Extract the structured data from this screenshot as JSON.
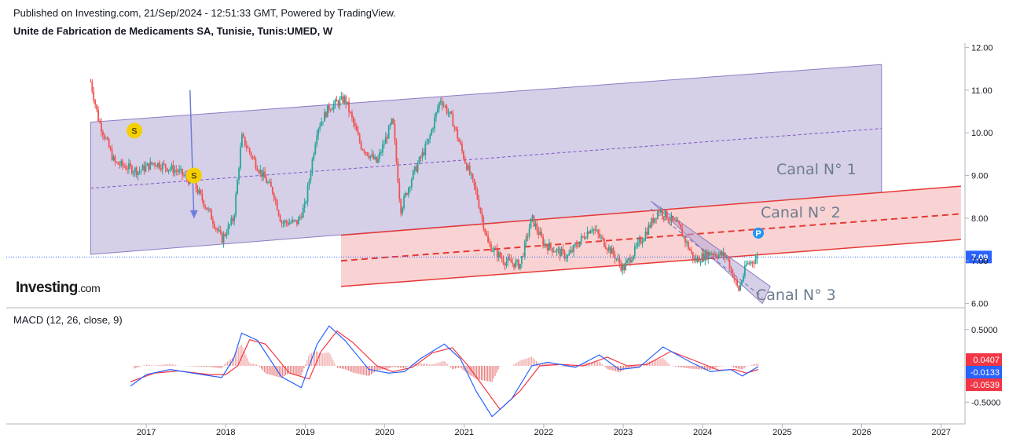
{
  "header": {
    "published": "Published on Investing.com, 21/Sep/2024 - 12:51:33 GMT, Powered by TradingView.",
    "symbol": "Unite de Fabrication de Medicaments SA, Tunisie, Tunis:UMED, W"
  },
  "brand": {
    "name": "Investing",
    "suffix": ".com"
  },
  "colors": {
    "up": "#26a69a",
    "down": "#ef5350",
    "channel1": "#b4a7d6",
    "channel2": "#f4a8a8",
    "macd": "#2962ff",
    "signal": "#f23645",
    "last_price": "#2962ff"
  },
  "chart_data": [
    {
      "type": "candlestick",
      "title": "Unite de Fabrication de Medicaments SA, Tunisie, Tunis:UMED, W",
      "x_axis": {
        "ticks": [
          "2017",
          "2018",
          "2019",
          "2020",
          "2021",
          "2022",
          "2023",
          "2024",
          "2025",
          "2026",
          "2027"
        ]
      },
      "y_axis": {
        "ticks": [
          "6.00",
          "7.00",
          "8.00",
          "9.00",
          "10.00",
          "11.00",
          "12.00"
        ],
        "range": [
          5.9,
          12.1
        ]
      },
      "last_price_label": "7.09",
      "last_price": 7.09,
      "approx_close_path": [
        {
          "x": 2016.3,
          "y": 11.2
        },
        {
          "x": 2016.4,
          "y": 10.3
        },
        {
          "x": 2016.5,
          "y": 9.8
        },
        {
          "x": 2016.6,
          "y": 9.3
        },
        {
          "x": 2016.9,
          "y": 9.1
        },
        {
          "x": 2017.1,
          "y": 9.3
        },
        {
          "x": 2017.4,
          "y": 9.1
        },
        {
          "x": 2017.6,
          "y": 8.8
        },
        {
          "x": 2017.8,
          "y": 8.1
        },
        {
          "x": 2017.95,
          "y": 7.5
        },
        {
          "x": 2018.1,
          "y": 8.0
        },
        {
          "x": 2018.2,
          "y": 9.9
        },
        {
          "x": 2018.4,
          "y": 9.2
        },
        {
          "x": 2018.6,
          "y": 8.6
        },
        {
          "x": 2018.7,
          "y": 7.9
        },
        {
          "x": 2018.9,
          "y": 7.9
        },
        {
          "x": 2019.0,
          "y": 8.3
        },
        {
          "x": 2019.15,
          "y": 10.1
        },
        {
          "x": 2019.3,
          "y": 10.6
        },
        {
          "x": 2019.5,
          "y": 10.8
        },
        {
          "x": 2019.7,
          "y": 9.7
        },
        {
          "x": 2019.9,
          "y": 9.3
        },
        {
          "x": 2020.1,
          "y": 10.3
        },
        {
          "x": 2020.2,
          "y": 8.2
        },
        {
          "x": 2020.35,
          "y": 9.0
        },
        {
          "x": 2020.55,
          "y": 9.8
        },
        {
          "x": 2020.7,
          "y": 10.8
        },
        {
          "x": 2020.85,
          "y": 10.3
        },
        {
          "x": 2021.0,
          "y": 9.4
        },
        {
          "x": 2021.15,
          "y": 8.6
        },
        {
          "x": 2021.3,
          "y": 7.4
        },
        {
          "x": 2021.5,
          "y": 7.0
        },
        {
          "x": 2021.7,
          "y": 6.9
        },
        {
          "x": 2021.85,
          "y": 8.0
        },
        {
          "x": 2022.0,
          "y": 7.4
        },
        {
          "x": 2022.3,
          "y": 7.1
        },
        {
          "x": 2022.6,
          "y": 7.8
        },
        {
          "x": 2022.9,
          "y": 7.1
        },
        {
          "x": 2023.0,
          "y": 6.8
        },
        {
          "x": 2023.2,
          "y": 7.4
        },
        {
          "x": 2023.45,
          "y": 8.2
        },
        {
          "x": 2023.7,
          "y": 7.8
        },
        {
          "x": 2023.9,
          "y": 7.0
        },
        {
          "x": 2024.1,
          "y": 7.2
        },
        {
          "x": 2024.3,
          "y": 7.1
        },
        {
          "x": 2024.45,
          "y": 6.3
        },
        {
          "x": 2024.55,
          "y": 6.9
        },
        {
          "x": 2024.7,
          "y": 7.09
        }
      ],
      "annotations": {
        "channels": [
          {
            "name": "Canal N° 1",
            "lower": [
              {
                "x": 2016.3,
                "y": 7.15
              },
              {
                "x": 2026.25,
                "y": 8.6
              }
            ],
            "upper": [
              {
                "x": 2016.3,
                "y": 10.25
              },
              {
                "x": 2026.25,
                "y": 11.6
              }
            ],
            "middle": [
              {
                "x": 2016.3,
                "y": 8.7
              },
              {
                "x": 2026.25,
                "y": 10.1
              }
            ]
          },
          {
            "name": "Canal N° 2",
            "lower": [
              {
                "x": 2019.45,
                "y": 6.4
              },
              {
                "x": 2027.25,
                "y": 7.5
              }
            ],
            "upper": [
              {
                "x": 2019.45,
                "y": 7.6
              },
              {
                "x": 2027.25,
                "y": 8.75
              }
            ],
            "middle": [
              {
                "x": 2019.45,
                "y": 7.0
              },
              {
                "x": 2027.25,
                "y": 8.1
              }
            ]
          },
          {
            "name": "Canal N° 3",
            "upper": [
              {
                "x": 2023.35,
                "y": 8.4
              },
              {
                "x": 2024.85,
                "y": 6.4
              }
            ],
            "lower": [
              {
                "x": 2023.8,
                "y": 7.6
              },
              {
                "x": 2024.75,
                "y": 6.0
              }
            ]
          }
        ],
        "badges": [
          {
            "label": "S",
            "x": 2016.85,
            "y": 10.05
          },
          {
            "label": "S",
            "x": 2017.6,
            "y": 9.0
          },
          {
            "label": "P",
            "x": 2024.7,
            "y": 7.65
          }
        ],
        "arrow": {
          "from": {
            "x": 2017.55,
            "y": 11.0
          },
          "to": {
            "x": 2017.6,
            "y": 8.0
          }
        }
      }
    },
    {
      "type": "line",
      "title": "MACD (12, 26, close, 9)",
      "y_axis": {
        "ticks": [
          "0.5000",
          "-0.5000"
        ],
        "range": [
          -0.8,
          0.8
        ]
      },
      "value_labels": [
        "0.0407",
        "-0.0133",
        "-0.0539"
      ],
      "series": [
        {
          "name": "MACD",
          "points": [
            {
              "x": 2016.8,
              "y": -0.28
            },
            {
              "x": 2017.0,
              "y": -0.12
            },
            {
              "x": 2017.3,
              "y": -0.05
            },
            {
              "x": 2017.7,
              "y": -0.12
            },
            {
              "x": 2017.95,
              "y": -0.16
            },
            {
              "x": 2018.1,
              "y": 0.1
            },
            {
              "x": 2018.2,
              "y": 0.45
            },
            {
              "x": 2018.4,
              "y": 0.35
            },
            {
              "x": 2018.7,
              "y": -0.15
            },
            {
              "x": 2018.95,
              "y": -0.3
            },
            {
              "x": 2019.15,
              "y": 0.3
            },
            {
              "x": 2019.3,
              "y": 0.55
            },
            {
              "x": 2019.5,
              "y": 0.35
            },
            {
              "x": 2019.8,
              "y": -0.05
            },
            {
              "x": 2020.05,
              "y": -0.1
            },
            {
              "x": 2020.25,
              "y": -0.08
            },
            {
              "x": 2020.45,
              "y": 0.1
            },
            {
              "x": 2020.75,
              "y": 0.3
            },
            {
              "x": 2020.95,
              "y": 0.1
            },
            {
              "x": 2021.15,
              "y": -0.35
            },
            {
              "x": 2021.35,
              "y": -0.7
            },
            {
              "x": 2021.6,
              "y": -0.45
            },
            {
              "x": 2021.85,
              "y": 0.0
            },
            {
              "x": 2022.05,
              "y": 0.05
            },
            {
              "x": 2022.4,
              "y": -0.02
            },
            {
              "x": 2022.7,
              "y": 0.15
            },
            {
              "x": 2022.95,
              "y": -0.05
            },
            {
              "x": 2023.2,
              "y": -0.02
            },
            {
              "x": 2023.5,
              "y": 0.26
            },
            {
              "x": 2023.85,
              "y": 0.05
            },
            {
              "x": 2024.1,
              "y": -0.08
            },
            {
              "x": 2024.35,
              "y": -0.05
            },
            {
              "x": 2024.5,
              "y": -0.14
            },
            {
              "x": 2024.7,
              "y": -0.01
            }
          ]
        },
        {
          "name": "Signal",
          "points": [
            {
              "x": 2016.8,
              "y": -0.22
            },
            {
              "x": 2017.1,
              "y": -0.1
            },
            {
              "x": 2017.4,
              "y": -0.07
            },
            {
              "x": 2017.8,
              "y": -0.12
            },
            {
              "x": 2018.0,
              "y": -0.12
            },
            {
              "x": 2018.15,
              "y": 0.0
            },
            {
              "x": 2018.3,
              "y": 0.36
            },
            {
              "x": 2018.5,
              "y": 0.3
            },
            {
              "x": 2018.8,
              "y": -0.1
            },
            {
              "x": 2019.05,
              "y": -0.18
            },
            {
              "x": 2019.2,
              "y": 0.2
            },
            {
              "x": 2019.4,
              "y": 0.48
            },
            {
              "x": 2019.6,
              "y": 0.32
            },
            {
              "x": 2019.9,
              "y": 0.0
            },
            {
              "x": 2020.1,
              "y": -0.08
            },
            {
              "x": 2020.35,
              "y": -0.02
            },
            {
              "x": 2020.6,
              "y": 0.18
            },
            {
              "x": 2020.85,
              "y": 0.25
            },
            {
              "x": 2021.05,
              "y": 0.0
            },
            {
              "x": 2021.25,
              "y": -0.3
            },
            {
              "x": 2021.45,
              "y": -0.6
            },
            {
              "x": 2021.7,
              "y": -0.35
            },
            {
              "x": 2021.95,
              "y": 0.0
            },
            {
              "x": 2022.2,
              "y": 0.02
            },
            {
              "x": 2022.5,
              "y": 0.0
            },
            {
              "x": 2022.8,
              "y": 0.12
            },
            {
              "x": 2023.05,
              "y": 0.0
            },
            {
              "x": 2023.3,
              "y": 0.02
            },
            {
              "x": 2023.6,
              "y": 0.2
            },
            {
              "x": 2023.95,
              "y": 0.05
            },
            {
              "x": 2024.2,
              "y": -0.06
            },
            {
              "x": 2024.4,
              "y": -0.05
            },
            {
              "x": 2024.55,
              "y": -0.1
            },
            {
              "x": 2024.7,
              "y": -0.05
            }
          ]
        }
      ]
    }
  ]
}
